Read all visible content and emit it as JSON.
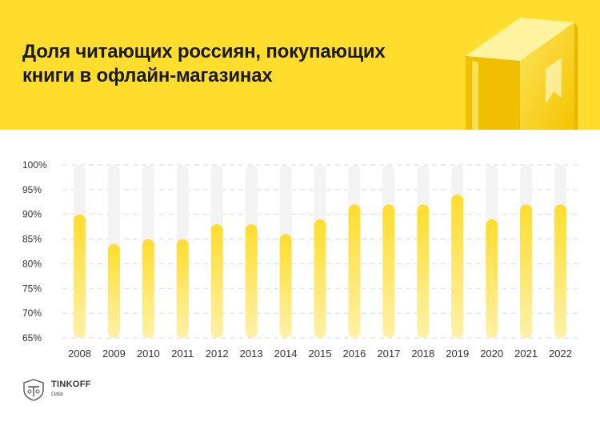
{
  "header": {
    "title_line1": "Доля читающих россиян, покупающих",
    "title_line2": "книги в офлайн-магазинах",
    "background": "#ffdd2d"
  },
  "chart_data": {
    "type": "bar",
    "title": "Доля читающих россиян, покупающих книги в офлайн-магазинах",
    "categories": [
      "2008",
      "2009",
      "2010",
      "2011",
      "2012",
      "2013",
      "2014",
      "2015",
      "2016",
      "2017",
      "2018",
      "2019",
      "2020",
      "2021",
      "2022"
    ],
    "values": [
      90,
      84,
      85,
      85,
      88,
      88,
      86,
      89,
      92,
      92,
      92,
      94,
      89,
      92,
      92
    ],
    "ylim": [
      65,
      100
    ],
    "yticks": [
      65,
      70,
      75,
      80,
      85,
      90,
      95,
      100
    ],
    "ytick_labels": [
      "65%",
      "70%",
      "75%",
      "80%",
      "85%",
      "90%",
      "95%",
      "100%"
    ],
    "grid": true,
    "bar_color_top": "#ffdd2d",
    "bar_color_bottom": "#fff1a8",
    "track_color": "#f3f3f3"
  },
  "footer": {
    "brand": "TINKOFF",
    "sub": "Data",
    "logo_icon": "tinkoff-shield-icon"
  }
}
